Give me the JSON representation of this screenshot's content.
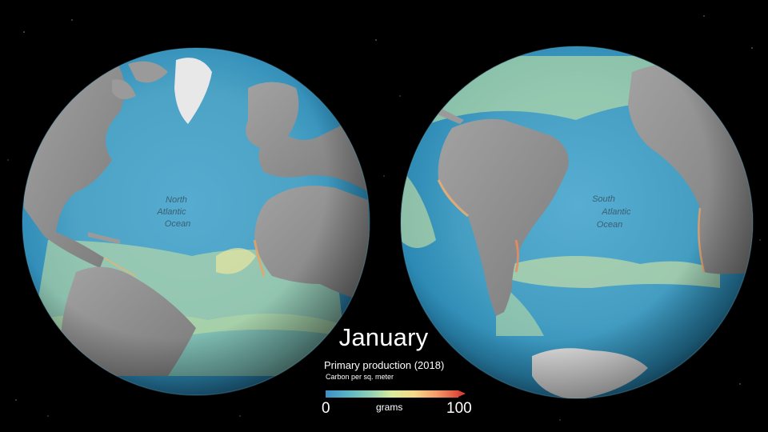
{
  "month": "January",
  "subtitle": "Primary production (2018)",
  "unit": "Carbon per sq. meter",
  "legend": {
    "min": "0",
    "label": "grams",
    "max": "100",
    "colors": [
      "#3d8fc8",
      "#58b4c4",
      "#8fd0b5",
      "#d9ec9c",
      "#f5d98a",
      "#f59c6a",
      "#dd4a3b"
    ]
  },
  "globes": [
    {
      "name": "north-atlantic",
      "label_lines": [
        "North",
        "Atlantic",
        "Ocean"
      ]
    },
    {
      "name": "south-atlantic",
      "label_lines": [
        "South",
        "Atlantic",
        "Ocean"
      ]
    }
  ],
  "colors": {
    "ocean_deep": "#2f7fb5",
    "ocean_mid": "#4fa6c6",
    "productive": "#d8e39a",
    "high": "#f0a060",
    "land": "#8d8d8d",
    "background": "#000000"
  }
}
